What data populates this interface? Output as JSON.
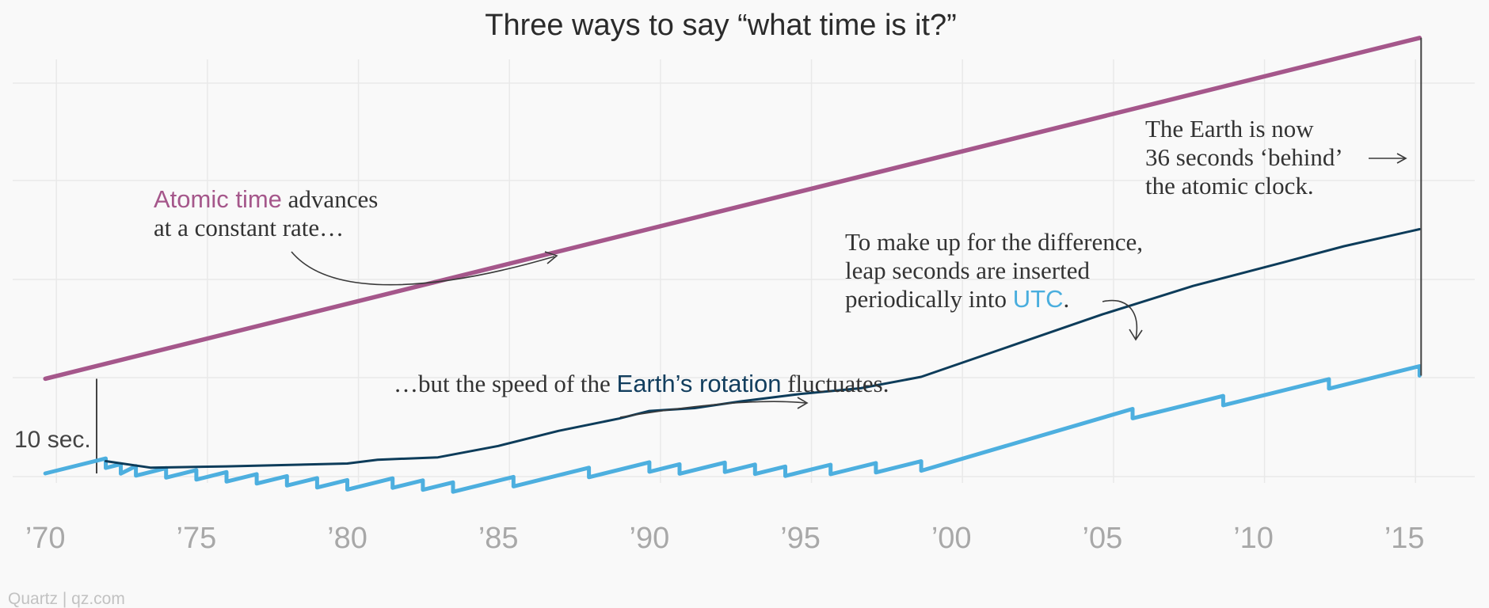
{
  "chart_data": {
    "type": "line",
    "title": "Three ways to say “what time is it?”",
    "xlabel": "",
    "ylabel": "",
    "x_tick_labels": [
      "’70",
      "’75",
      "’80",
      "’85",
      "’90",
      "’95",
      "’00",
      "’05",
      "’10",
      "’15"
    ],
    "x_tick_years": [
      1970,
      1975,
      1980,
      1985,
      1990,
      1995,
      2000,
      2005,
      2010,
      2015
    ],
    "xlim": [
      1968.5,
      2017.8
    ],
    "ylim": [
      -0.5,
      49
    ],
    "grid": true,
    "scale_bar": {
      "label": "10 sec.",
      "value": 10
    },
    "colors": {
      "atomic": "#a5578b",
      "utc": "#4dafdf",
      "earth": "#0d3c5a",
      "earth_text": "#123e5e",
      "utc_text": "#4aaede",
      "atomic_text": "#a5578b"
    },
    "series": [
      {
        "key": "atomic",
        "x": [
          1970.0,
          2015.5
        ],
        "y": [
          10.0,
          46.0
        ]
      },
      {
        "key": "utc",
        "x": [
          1970.0,
          1972.0,
          1972.0,
          1972.5,
          1972.5,
          1973.0,
          1973.0,
          1974.0,
          1974.0,
          1975.0,
          1975.0,
          1976.0,
          1976.0,
          1977.0,
          1977.0,
          1978.0,
          1978.0,
          1979.0,
          1979.0,
          1980.0,
          1980.0,
          1981.5,
          1981.5,
          1982.5,
          1982.5,
          1983.5,
          1983.5,
          1985.5,
          1985.5,
          1988.0,
          1988.0,
          1990.0,
          1990.0,
          1991.0,
          1991.0,
          1992.5,
          1992.5,
          1993.5,
          1993.5,
          1994.5,
          1994.5,
          1996.0,
          1996.0,
          1997.5,
          1997.5,
          1999.0,
          1999.0,
          2006.0,
          2006.0,
          2009.0,
          2009.0,
          2012.5,
          2012.5,
          2015.5,
          2015.5
        ],
        "y": [
          0.0,
          1.58,
          0.58,
          0.98,
          -0.02,
          0.77,
          -0.23,
          0.56,
          -0.44,
          0.35,
          -0.65,
          0.14,
          -0.86,
          -0.07,
          -1.07,
          -0.28,
          -1.28,
          -0.49,
          -1.49,
          -0.7,
          -1.7,
          -0.52,
          -1.52,
          -0.73,
          -1.73,
          -0.94,
          -1.94,
          -0.37,
          -1.37,
          0.6,
          -0.4,
          1.18,
          0.18,
          0.97,
          -0.03,
          1.15,
          0.15,
          0.94,
          -0.06,
          0.73,
          -0.27,
          0.92,
          -0.08,
          1.1,
          0.1,
          1.29,
          0.29,
          6.82,
          5.82,
          8.19,
          7.19,
          9.96,
          8.96,
          11.33,
          10.33
        ]
      },
      {
        "key": "earth",
        "x": [
          1972.0,
          1973.5,
          1976.0,
          1980.0,
          1981.0,
          1983.0,
          1985.0,
          1987.0,
          1989.0,
          1990.0,
          1991.5,
          1993.0,
          1995.0,
          1997.0,
          1999.0,
          2002.0,
          2005.0,
          2008.0,
          2011.0,
          2013.0,
          2015.5
        ],
        "y": [
          1.3,
          0.6,
          0.75,
          1.05,
          1.45,
          1.7,
          2.9,
          4.5,
          5.8,
          6.6,
          6.9,
          7.6,
          8.4,
          9.0,
          10.2,
          13.5,
          16.8,
          19.8,
          22.3,
          24.0,
          25.8
        ]
      }
    ],
    "legend_inline": [
      {
        "key": "atomic",
        "label": "Atomic time"
      },
      {
        "key": "earth",
        "label": "Earth’s rotation"
      },
      {
        "key": "utc",
        "label": "UTC"
      }
    ],
    "annotations": {
      "atomic": {
        "label": "Atomic time",
        "rest_line1": " advances",
        "line2": "at a constant rate…"
      },
      "earth": {
        "prefix": "…but the speed of the ",
        "label": "Earth’s rotation",
        "suffix": " fluctuates."
      },
      "utc": {
        "line1": "To make up for the difference,",
        "line2": "leap seconds are inserted",
        "line3_prefix": "periodically into ",
        "label": "UTC",
        "line3_suffix": "."
      },
      "behind": {
        "line1": "The Earth is now",
        "line2": "36 seconds ‘behind’",
        "line3": "the atomic clock."
      }
    },
    "credit": "Quartz | qz.com"
  }
}
